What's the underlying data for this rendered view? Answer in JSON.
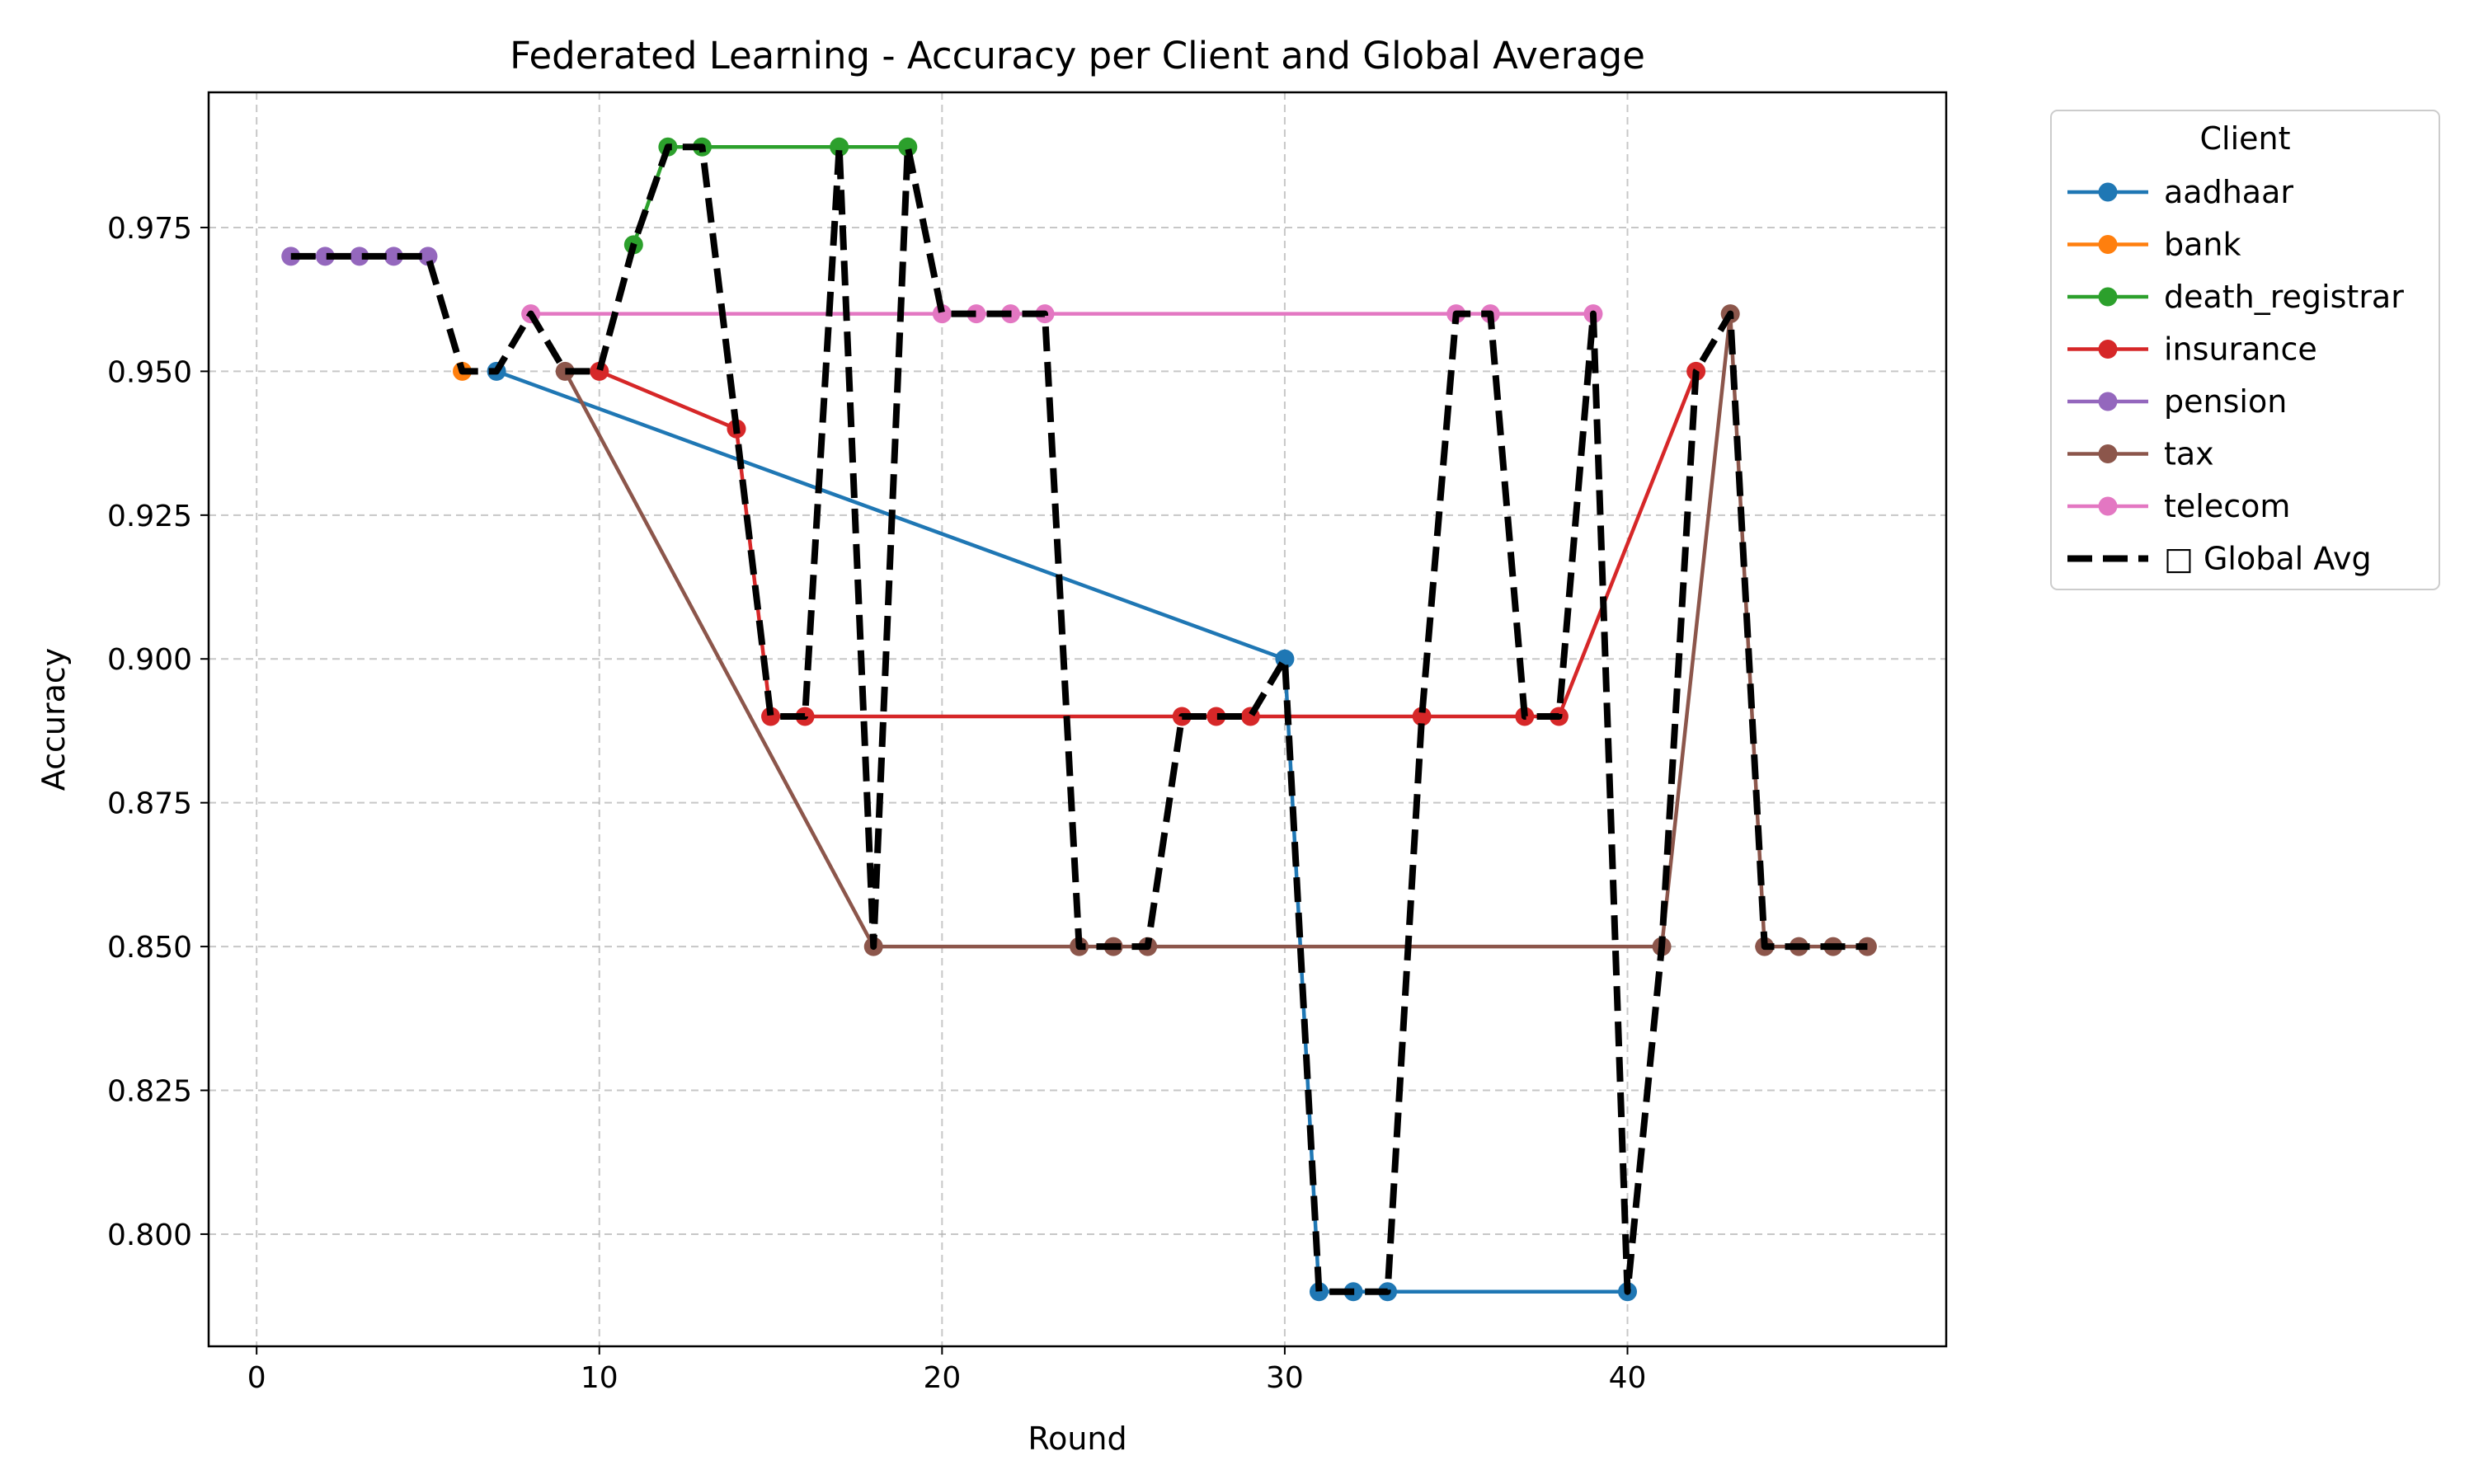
{
  "chart_data": {
    "type": "line",
    "title": "Federated Learning - Accuracy per Client and Global Average",
    "xlabel": "Round",
    "ylabel": "Accuracy",
    "xlim": [
      -1.4,
      49.3
    ],
    "ylim": [
      0.7805,
      0.9985
    ],
    "xticks": [
      0,
      10,
      20,
      30,
      40
    ],
    "yticks": [
      0.8,
      0.825,
      0.85,
      0.875,
      0.9,
      0.925,
      0.95,
      0.975
    ],
    "ytick_labels": [
      "0.800",
      "0.825",
      "0.850",
      "0.875",
      "0.900",
      "0.925",
      "0.950",
      "0.975"
    ],
    "grid": true,
    "legend": {
      "title": "Client",
      "placement": "outside-top-right"
    },
    "series": [
      {
        "name": "aadhaar",
        "color": "#1f77b4",
        "style": "solid-marker",
        "x": [
          7,
          30,
          31,
          32,
          33,
          40
        ],
        "y": [
          0.95,
          0.9,
          0.79,
          0.79,
          0.79,
          0.79
        ]
      },
      {
        "name": "bank",
        "color": "#ff7f0e",
        "style": "solid-marker",
        "x": [
          6
        ],
        "y": [
          0.95
        ]
      },
      {
        "name": "death_registrar",
        "color": "#2ca02c",
        "style": "solid-marker",
        "x": [
          11,
          12,
          13,
          17,
          19
        ],
        "y": [
          0.972,
          0.989,
          0.989,
          0.989,
          0.989
        ]
      },
      {
        "name": "insurance",
        "color": "#d62728",
        "style": "solid-marker",
        "x": [
          10,
          14,
          15,
          16,
          27,
          28,
          29,
          34,
          37,
          38,
          42
        ],
        "y": [
          0.95,
          0.94,
          0.89,
          0.89,
          0.89,
          0.89,
          0.89,
          0.89,
          0.89,
          0.89,
          0.95
        ]
      },
      {
        "name": "pension",
        "color": "#9467bd",
        "style": "solid-marker",
        "x": [
          1,
          2,
          3,
          4,
          5
        ],
        "y": [
          0.97,
          0.97,
          0.97,
          0.97,
          0.97
        ]
      },
      {
        "name": "tax",
        "color": "#8c564b",
        "style": "solid-marker",
        "x": [
          9,
          18,
          24,
          25,
          26,
          41,
          43,
          44,
          45,
          46,
          47
        ],
        "y": [
          0.95,
          0.85,
          0.85,
          0.85,
          0.85,
          0.85,
          0.96,
          0.85,
          0.85,
          0.85,
          0.85
        ]
      },
      {
        "name": "telecom",
        "color": "#e377c2",
        "style": "solid-marker",
        "x": [
          8,
          20,
          21,
          22,
          23,
          35,
          36,
          39
        ],
        "y": [
          0.96,
          0.96,
          0.96,
          0.96,
          0.96,
          0.96,
          0.96,
          0.96
        ]
      },
      {
        "name": "□ Global Avg",
        "color": "#000000",
        "style": "dashed",
        "x": [
          1,
          2,
          3,
          4,
          5,
          6,
          7,
          8,
          9,
          10,
          11,
          12,
          13,
          14,
          15,
          16,
          17,
          18,
          19,
          20,
          21,
          22,
          23,
          24,
          25,
          26,
          27,
          28,
          29,
          30,
          31,
          32,
          33,
          34,
          35,
          36,
          37,
          38,
          39,
          40,
          41,
          42,
          43,
          44,
          45,
          46,
          47
        ],
        "y": [
          0.97,
          0.97,
          0.97,
          0.97,
          0.97,
          0.95,
          0.95,
          0.96,
          0.95,
          0.95,
          0.972,
          0.989,
          0.989,
          0.94,
          0.89,
          0.89,
          0.989,
          0.85,
          0.989,
          0.96,
          0.96,
          0.96,
          0.96,
          0.85,
          0.85,
          0.85,
          0.89,
          0.89,
          0.89,
          0.9,
          0.79,
          0.79,
          0.79,
          0.89,
          0.96,
          0.96,
          0.89,
          0.89,
          0.96,
          0.79,
          0.85,
          0.95,
          0.96,
          0.85,
          0.85,
          0.85,
          0.85
        ]
      }
    ]
  }
}
